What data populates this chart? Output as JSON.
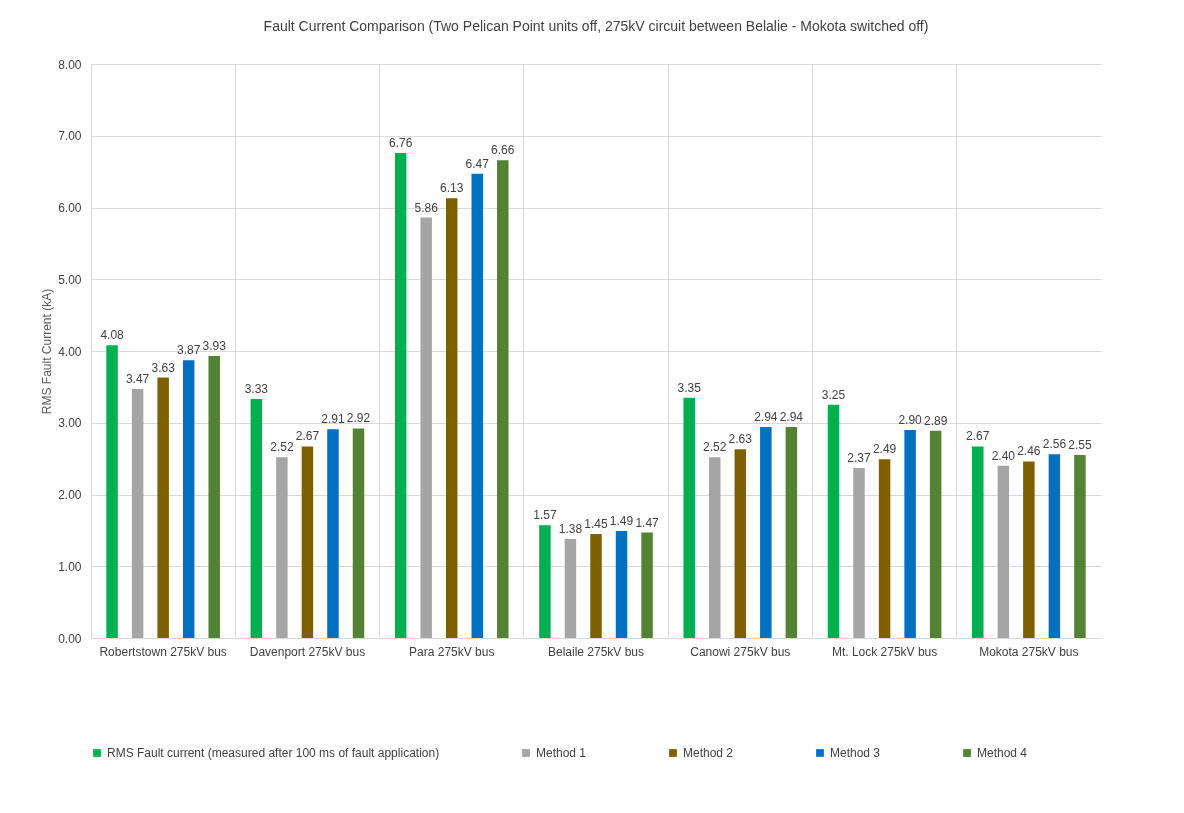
{
  "chart_data": {
    "type": "bar",
    "title": "Fault Current Comparison (Two Pelican Point units off, 275kV circuit between Belalie - Mokota switched off)",
    "ylabel": "RMS Fault Current (kA)",
    "categories": [
      "Robertstown 275kV bus",
      "Davenport 275kV bus",
      "Para 275kV bus",
      "Belaile 275kV bus",
      "Canowi 275kV bus",
      "Mt. Lock 275kV bus",
      "Mokota 275kV bus"
    ],
    "series": [
      {
        "name": "RMS Fault current (measured after 100 ms of fault application)",
        "color": "#00b050",
        "values": [
          4.08,
          3.33,
          6.76,
          1.57,
          3.35,
          3.25,
          2.67
        ],
        "value_labels": [
          "4.08",
          "3.33",
          "6.76",
          "1.57",
          "3.35",
          "3.25",
          "2.67"
        ]
      },
      {
        "name": "Method 1",
        "color": "#a5a5a5",
        "values": [
          3.47,
          2.52,
          5.86,
          1.38,
          2.52,
          2.37,
          2.4
        ],
        "value_labels": [
          "3.47",
          "2.52",
          "5.86",
          "1.38",
          "2.52",
          "2.37",
          "2.40"
        ]
      },
      {
        "name": "Method 2",
        "color": "#7f6000",
        "values": [
          3.63,
          2.67,
          6.13,
          1.45,
          2.63,
          2.49,
          2.46
        ],
        "value_labels": [
          "3.63",
          "2.67",
          "6.13",
          "1.45",
          "2.63",
          "2.49",
          "2.46"
        ]
      },
      {
        "name": "Method 3",
        "color": "#0070c0",
        "values": [
          3.87,
          2.91,
          6.47,
          1.49,
          2.94,
          2.9,
          2.56
        ],
        "value_labels": [
          "3.87",
          "2.91",
          "6.47",
          "1.49",
          "2.94",
          "2.90",
          "2.56"
        ]
      },
      {
        "name": "Method 4",
        "color": "#548235",
        "values": [
          3.93,
          2.92,
          6.66,
          1.47,
          2.94,
          2.89,
          2.55
        ],
        "value_labels": [
          "3.93",
          "2.92",
          "6.66",
          "1.47",
          "2.94",
          "2.89",
          "2.55"
        ]
      }
    ],
    "ylim": [
      0,
      8
    ],
    "yticks": [
      {
        "value": 0,
        "label": "0.00"
      },
      {
        "value": 1,
        "label": "1.00"
      },
      {
        "value": 2,
        "label": "2.00"
      },
      {
        "value": 3,
        "label": "3.00"
      },
      {
        "value": 4,
        "label": "4.00"
      },
      {
        "value": 5,
        "label": "5.00"
      },
      {
        "value": 6,
        "label": "6.00"
      },
      {
        "value": 7,
        "label": "7.00"
      },
      {
        "value": 8,
        "label": "8.00"
      }
    ],
    "grid": true,
    "legend": "bottom"
  }
}
